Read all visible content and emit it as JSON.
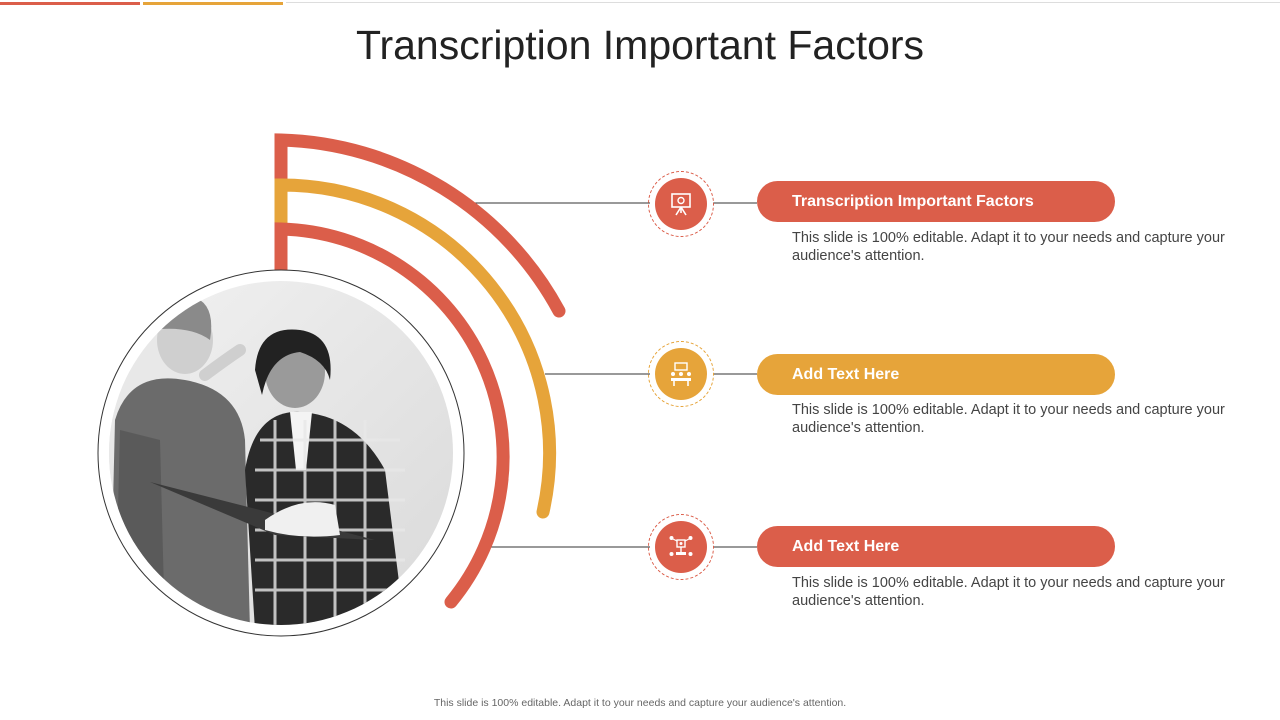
{
  "colors": {
    "red": "#DB5E4A",
    "orange": "#E6A43A",
    "line": "#333333"
  },
  "slide": {
    "title": "Transcription Important Factors",
    "footer": "This slide is 100% editable. Adapt it to your needs and capture your audience's attention."
  },
  "photo": {
    "icon": "people-photo"
  },
  "items": [
    {
      "heading": "Transcription Important Factors",
      "description": "This slide is 100% editable. Adapt it to your needs and capture your audience's attention.",
      "icon": "presentation-board-icon",
      "color": "red"
    },
    {
      "heading": "Add Text Here",
      "description": "This slide is 100% editable. Adapt it to your needs and capture your audience's attention.",
      "icon": "meeting-table-icon",
      "color": "orange"
    },
    {
      "heading": "Add Text Here",
      "description": "This slide is 100% editable. Adapt it to your needs and capture your audience's attention.",
      "icon": "network-people-icon",
      "color": "red"
    }
  ]
}
